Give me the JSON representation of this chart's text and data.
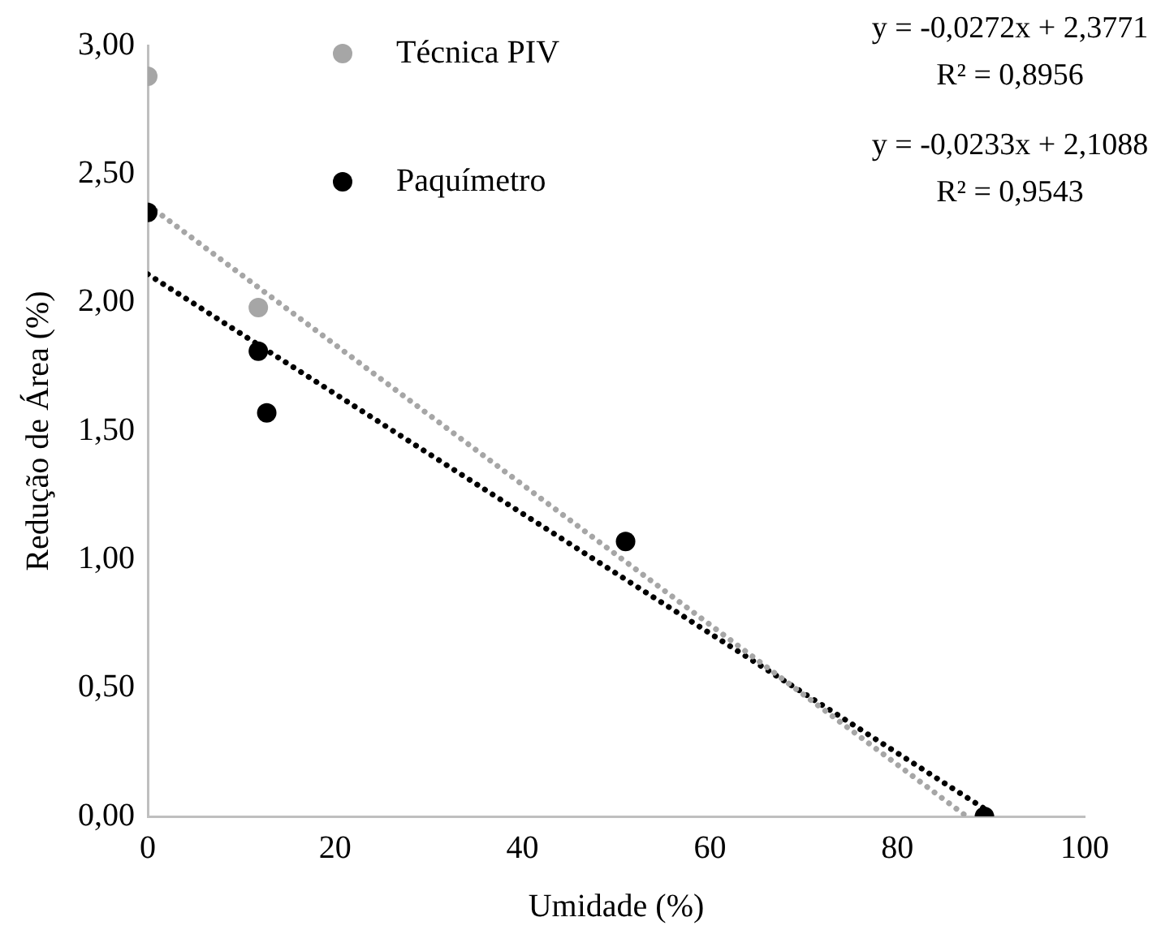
{
  "chart_data": {
    "type": "scatter",
    "xlabel": "Umidade (%)",
    "ylabel": "Redução de Área (%)",
    "xlim": [
      0,
      100
    ],
    "xticks": [
      0,
      20,
      40,
      60,
      80,
      100
    ],
    "ylim": [
      0,
      3
    ],
    "yticks": [
      {
        "value": 0,
        "label": "0,00"
      },
      {
        "value": 0.5,
        "label": "0,50"
      },
      {
        "value": 1,
        "label": "1,00"
      },
      {
        "value": 1.5,
        "label": "1,50"
      },
      {
        "value": 2,
        "label": "2,00"
      },
      {
        "value": 2.5,
        "label": "2,50"
      },
      {
        "value": 3,
        "label": "3,00"
      }
    ],
    "grid": false,
    "legend": "top",
    "marker": "circle",
    "series": [
      {
        "name": "Técnica PIV",
        "color": "#a6a6a6",
        "x": [
          0,
          11.8
        ],
        "values": [
          2.88,
          1.98
        ]
      },
      {
        "name": "Paquímetro",
        "color": "#000000",
        "x": [
          0,
          11.8,
          12.7,
          51,
          89.3
        ],
        "values": [
          2.35,
          1.81,
          1.57,
          1.07,
          0
        ]
      },
      {
        "type": "line",
        "color": "#a6a6a6",
        "line_style": "dotted",
        "marker": "none",
        "x": [
          0,
          87.4
        ],
        "values": [
          2.38,
          0
        ]
      },
      {
        "type": "line",
        "color": "#000000",
        "line_style": "dotted",
        "marker": "none",
        "x": [
          0,
          89.3
        ],
        "values": [
          2.11,
          0.03
        ]
      }
    ],
    "annotations": [
      "y = -0,0272x + 2,3771",
      "R² = 0,8956",
      "y = -0,0233x + 2,1088",
      "R² = 0,9543"
    ]
  }
}
